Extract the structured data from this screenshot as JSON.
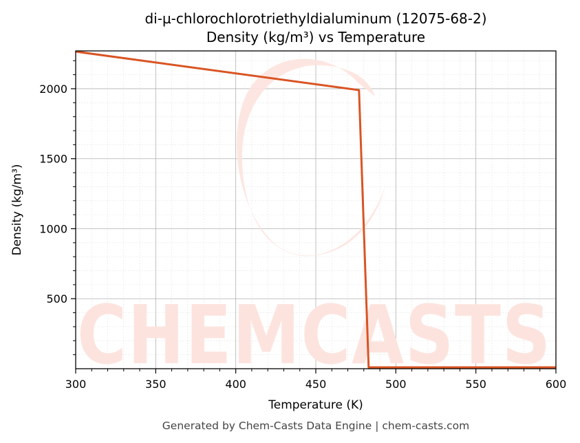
{
  "chart_data": {
    "type": "line",
    "title_line1": "di-µ-chlorochlorotriethyldialuminum (12075-68-2)",
    "title_line2": "Density (kg/m³) vs Temperature",
    "xlabel": "Temperature (K)",
    "ylabel": "Density (kg/m³)",
    "xlim": [
      300,
      600
    ],
    "ylim": [
      0,
      2270
    ],
    "x_ticks": [
      "300",
      "350",
      "400",
      "450",
      "500",
      "550",
      "600"
    ],
    "y_ticks": [
      "500",
      "1000",
      "1500",
      "2000"
    ],
    "grid": true,
    "series": [
      {
        "color": "#d95423",
        "x": [
          300,
          477,
          483,
          490,
          600
        ],
        "y": [
          2265,
          1990,
          10,
          10,
          10
        ]
      }
    ]
  },
  "watermark": {
    "text": "CHEMCASTS",
    "color": "#fde3de"
  },
  "footer": "Generated by Chem-Casts Data Engine | chem-casts.com"
}
